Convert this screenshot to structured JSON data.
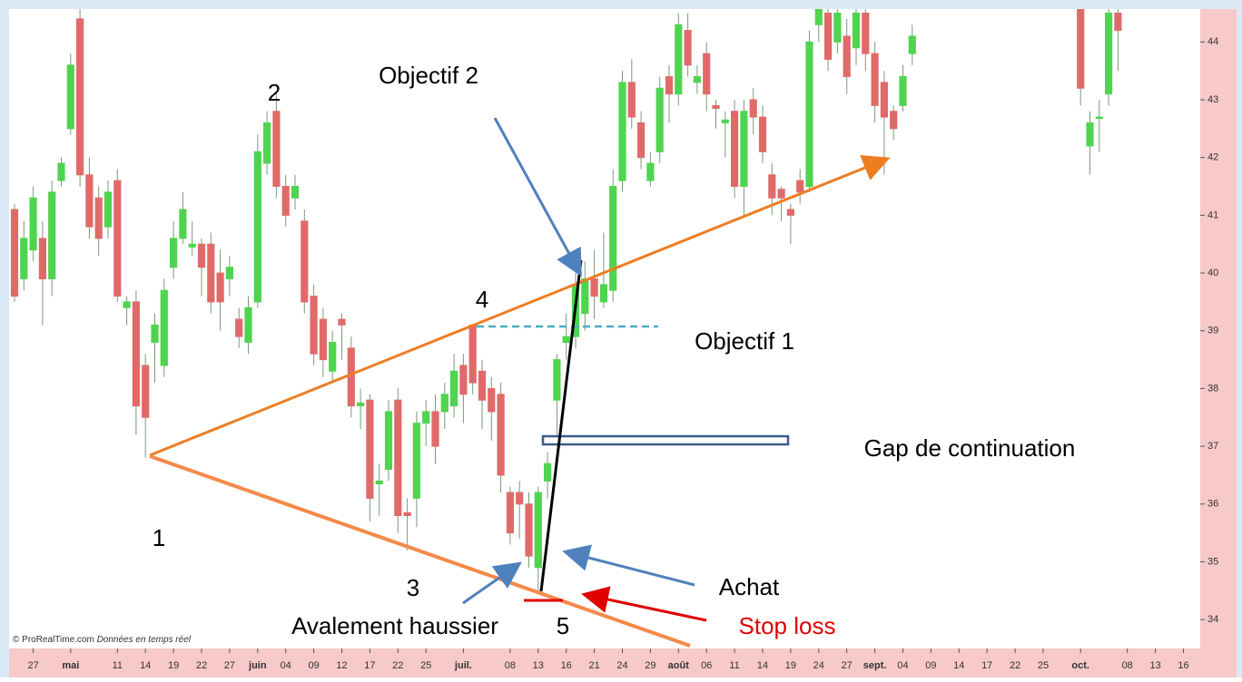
{
  "chart_data": {
    "type": "candlestick",
    "categories": [
      null,
      null,
      "27",
      null,
      null,
      null,
      "mai",
      null,
      null,
      null,
      null,
      "11",
      null,
      null,
      "14",
      null,
      null,
      "19",
      null,
      null,
      "22",
      null,
      null,
      "27",
      null,
      null,
      "juin",
      null,
      null,
      "04",
      null,
      null,
      "09",
      null,
      null,
      "12",
      null,
      null,
      "17",
      null,
      null,
      "22",
      null,
      null,
      "25",
      null,
      null,
      null,
      "juil.",
      null,
      null,
      null,
      null,
      "08",
      null,
      null,
      "13",
      null,
      null,
      "16",
      null,
      null,
      "21",
      null,
      null,
      "24",
      null,
      null,
      "29",
      null,
      null,
      "août",
      null,
      null,
      "06",
      null,
      null,
      "11",
      null,
      null,
      "14",
      null,
      null,
      "19",
      null,
      null,
      "24",
      null,
      null,
      "27",
      null,
      null,
      "sept.",
      null,
      null,
      "04",
      null,
      null,
      "09",
      null,
      null,
      "14",
      null,
      null,
      "17",
      null,
      null,
      "22",
      null,
      null,
      "25",
      null,
      null,
      null,
      "oct.",
      null,
      null,
      null,
      null,
      "08",
      null,
      null,
      "13",
      null,
      null,
      "16"
    ],
    "series": [
      {
        "open": [
          41.1,
          39.9,
          40.4,
          40.6,
          39.9,
          41.6,
          42.5,
          44.4,
          41.7,
          41.3,
          40.8,
          41.6,
          39.4,
          39.5,
          38.4,
          38.8,
          38.4,
          40.1,
          40.6,
          40.45,
          40.5,
          40.5,
          40.0,
          39.9,
          39.2,
          38.8,
          39.5,
          41.9,
          42.8,
          41.5,
          41.3,
          40.9,
          39.6,
          39.2,
          38.3,
          39.2,
          38.7,
          37.7,
          37.8,
          36.35,
          36.6,
          37.8,
          35.85,
          36.1,
          37.4,
          37.6,
          37.6,
          37.7,
          38.4,
          39.1,
          38.3,
          38.0,
          37.9,
          36.2,
          36.2,
          36.0,
          34.9,
          36.4,
          37.8,
          38.8,
          38.9,
          39.3,
          39.9,
          39.5,
          39.7,
          41.6,
          43.3,
          42.6,
          41.6,
          42.1,
          43.4,
          43.1,
          44.2,
          43.3,
          43.8,
          42.9,
          42.6,
          42.8,
          41.5,
          43.0,
          42.7,
          41.7,
          41.45,
          41.1,
          41.6,
          41.5,
          44.3,
          44.5,
          44.0,
          44.1,
          43.9,
          44.5,
          43.8,
          43.3,
          42.8,
          42.9,
          43.8,
          null,
          null,
          null,
          null,
          null,
          null,
          null,
          null,
          null,
          null,
          null,
          null,
          null,
          null,
          null,
          null,
          null,
          44.6,
          42.2,
          42.7,
          43.1,
          44.5,
          null,
          null,
          null,
          null,
          null,
          null,
          null
        ],
        "high": [
          41.2,
          40.9,
          41.5,
          40.9,
          41.6,
          42.0,
          43.8,
          44.6,
          42.0,
          41.5,
          41.6,
          41.8,
          39.6,
          39.7,
          38.6,
          39.3,
          39.9,
          40.9,
          41.4,
          40.9,
          40.6,
          40.7,
          40.4,
          40.3,
          39.4,
          39.6,
          42.4,
          42.8,
          43.1,
          41.7,
          41.7,
          41.1,
          39.8,
          39.4,
          39.0,
          39.3,
          38.9,
          38.0,
          37.9,
          36.7,
          37.8,
          38.0,
          36.1,
          37.6,
          37.8,
          37.9,
          38.1,
          38.6,
          38.6,
          39.1,
          38.5,
          38.2,
          38.1,
          36.3,
          36.4,
          36.2,
          36.3,
          36.9,
          38.6,
          39.3,
          40.0,
          40.2,
          40.4,
          40.7,
          41.8,
          43.5,
          43.7,
          42.8,
          42.1,
          43.4,
          43.6,
          44.5,
          44.5,
          43.6,
          44.0,
          43.0,
          42.8,
          43.0,
          43.0,
          43.2,
          42.9,
          41.9,
          41.5,
          41.2,
          41.8,
          44.2,
          44.6,
          44.6,
          44.6,
          44.4,
          44.6,
          44.6,
          44.0,
          43.5,
          42.9,
          43.6,
          44.3,
          null,
          null,
          null,
          null,
          null,
          null,
          null,
          null,
          null,
          null,
          null,
          null,
          null,
          null,
          null,
          null,
          null,
          44.6,
          42.8,
          43.0,
          44.6,
          44.6,
          null,
          null,
          null,
          null,
          null,
          null,
          null
        ],
        "low": [
          39.5,
          39.7,
          40.2,
          39.1,
          39.6,
          41.5,
          42.4,
          41.5,
          40.6,
          40.3,
          40.6,
          39.5,
          39.1,
          37.2,
          36.8,
          38.1,
          38.2,
          39.9,
          40.5,
          40.3,
          39.6,
          39.3,
          39.0,
          39.6,
          38.7,
          38.6,
          39.4,
          41.7,
          41.3,
          40.8,
          41.1,
          39.3,
          38.4,
          38.2,
          38.1,
          38.5,
          37.5,
          37.3,
          35.7,
          35.8,
          36.4,
          35.5,
          35.2,
          35.6,
          37.0,
          36.7,
          37.3,
          37.5,
          37.4,
          37.9,
          37.3,
          37.1,
          36.2,
          35.3,
          35.4,
          34.9,
          34.5,
          36.1,
          37.2,
          38.5,
          38.7,
          39.0,
          39.2,
          39.4,
          39.5,
          41.4,
          42.5,
          41.8,
          41.5,
          41.9,
          42.6,
          42.9,
          43.4,
          43.1,
          42.8,
          42.5,
          42.0,
          41.3,
          41.0,
          42.4,
          41.9,
          41.0,
          40.9,
          40.5,
          41.2,
          41.4,
          44.0,
          43.5,
          43.8,
          43.1,
          43.6,
          43.5,
          42.6,
          41.7,
          42.3,
          42.8,
          43.6,
          null,
          null,
          null,
          null,
          null,
          null,
          null,
          null,
          null,
          null,
          null,
          null,
          null,
          null,
          null,
          null,
          null,
          42.9,
          41.7,
          42.1,
          42.9,
          43.5,
          null,
          null,
          null,
          null,
          null,
          null,
          null
        ],
        "close": [
          39.6,
          40.6,
          41.3,
          39.9,
          41.4,
          41.9,
          43.6,
          41.7,
          40.8,
          40.6,
          41.4,
          39.6,
          39.5,
          37.7,
          37.5,
          39.1,
          39.7,
          40.6,
          41.1,
          40.5,
          40.1,
          39.5,
          39.5,
          40.1,
          38.9,
          39.4,
          42.1,
          42.6,
          41.5,
          41.0,
          41.5,
          39.5,
          38.6,
          38.5,
          38.8,
          39.1,
          37.7,
          37.75,
          36.1,
          36.4,
          37.6,
          35.8,
          35.8,
          37.4,
          37.6,
          37.0,
          37.9,
          38.3,
          37.9,
          38.1,
          37.8,
          37.6,
          36.5,
          35.5,
          36.0,
          35.1,
          36.2,
          36.7,
          38.5,
          38.9,
          39.8,
          39.9,
          39.6,
          39.8,
          41.5,
          43.3,
          42.7,
          42.0,
          41.9,
          43.2,
          43.1,
          44.3,
          43.6,
          43.4,
          43.1,
          42.85,
          42.65,
          41.5,
          42.8,
          42.7,
          42.1,
          41.3,
          41.3,
          41.0,
          41.4,
          44.0,
          44.6,
          43.7,
          44.5,
          43.4,
          44.5,
          43.8,
          42.9,
          42.7,
          42.5,
          43.4,
          44.1,
          null,
          null,
          null,
          null,
          null,
          null,
          null,
          null,
          null,
          null,
          null,
          null,
          null,
          null,
          null,
          null,
          null,
          43.2,
          42.6,
          42.7,
          44.5,
          44.2,
          null,
          null,
          null,
          null,
          null,
          null,
          null
        ]
      }
    ],
    "up_color": "#4fd44f",
    "down_color": "#e06a6a",
    "ylim": [
      33.5,
      44.57
    ],
    "yticks": [
      34,
      35,
      36,
      37,
      38,
      39,
      40,
      41,
      42,
      43,
      44
    ],
    "annotations": [
      "Objectif 2",
      "2",
      "4",
      "Objectif 1",
      "Gap de continuation",
      "1",
      "3",
      "Achat",
      "Avalement haussier",
      "5",
      "Stop loss"
    ],
    "source": {
      "site": "© ProRealTime.com",
      "note": "Données en temps réel"
    }
  }
}
